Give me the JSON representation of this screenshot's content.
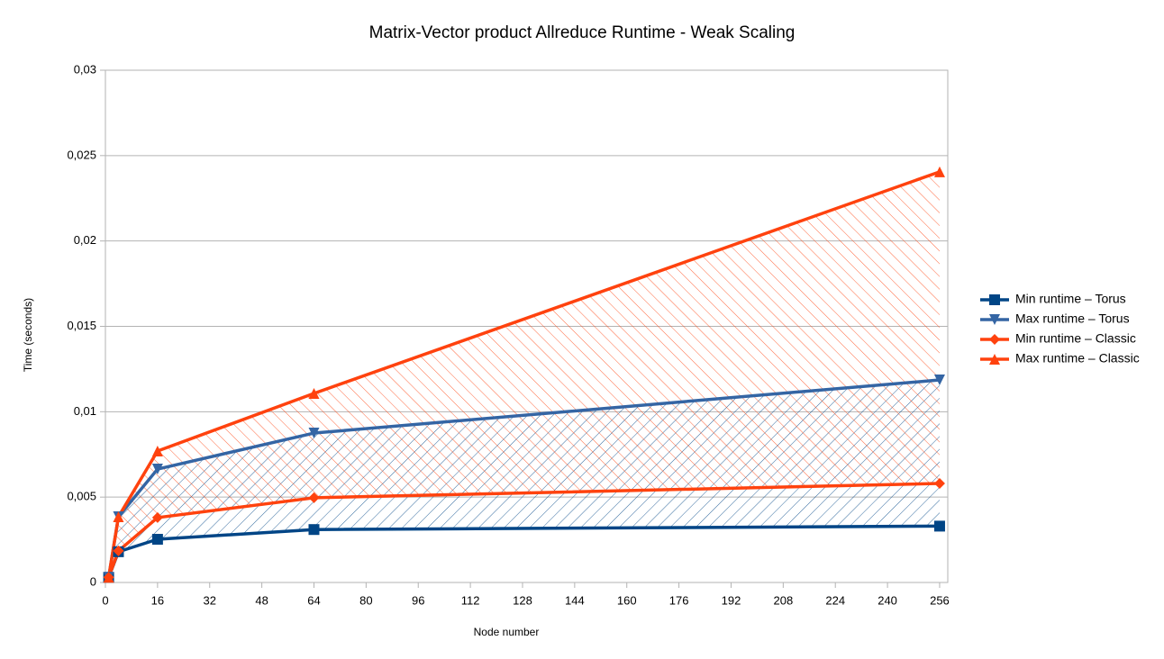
{
  "chart_data": {
    "type": "line",
    "title": "Matrix-Vector product Allreduce Runtime - Weak Scaling",
    "x_label": "Node number",
    "y_label": "Time (seconds)",
    "x": [
      1,
      4,
      16,
      64,
      256
    ],
    "xlim": [
      0,
      258.5
    ],
    "xticks": [
      0,
      16,
      32,
      48,
      64,
      80,
      96,
      112,
      128,
      144,
      160,
      176,
      192,
      208,
      224,
      240,
      256
    ],
    "ylim": [
      0,
      0.03
    ],
    "yticks": [
      0,
      {
        "value": 0.005,
        "label": "0,005"
      },
      {
        "value": 0.01,
        "label": "0,01"
      },
      {
        "value": 0.015,
        "label": "0,015"
      },
      {
        "value": 0.02,
        "label": "0,02"
      },
      {
        "value": 0.025,
        "label": "0,025"
      },
      {
        "value": 0.03,
        "label": "0,03"
      }
    ],
    "grid": true,
    "legend": "right",
    "series": [
      {
        "name": "Min runtime – Torus",
        "color": "#004586",
        "marker": "square",
        "values": [
          0.0003,
          0.0018,
          0.00253,
          0.0031,
          0.0033
        ]
      },
      {
        "name": "Max runtime – Torus",
        "color": "#3465a4",
        "marker": "triangle-down",
        "values": [
          0.0003,
          0.00385,
          0.00664,
          0.00875,
          0.01186
        ]
      },
      {
        "name": "Min runtime – Classic",
        "color": "#ff420e",
        "marker": "diamond",
        "values": [
          0.0003,
          0.00185,
          0.0038,
          0.00496,
          0.0058
        ]
      },
      {
        "name": "Max runtime – Classic",
        "color": "#ff420e",
        "marker": "triangle-up",
        "values": [
          0.0003,
          0.00385,
          0.0077,
          0.01107,
          0.02405
        ]
      }
    ],
    "ranges": [
      {
        "min_series": 0,
        "max_series": 1,
        "color": "#004586"
      },
      {
        "min_series": 2,
        "max_series": 3,
        "color": "#ff420e"
      }
    ]
  }
}
